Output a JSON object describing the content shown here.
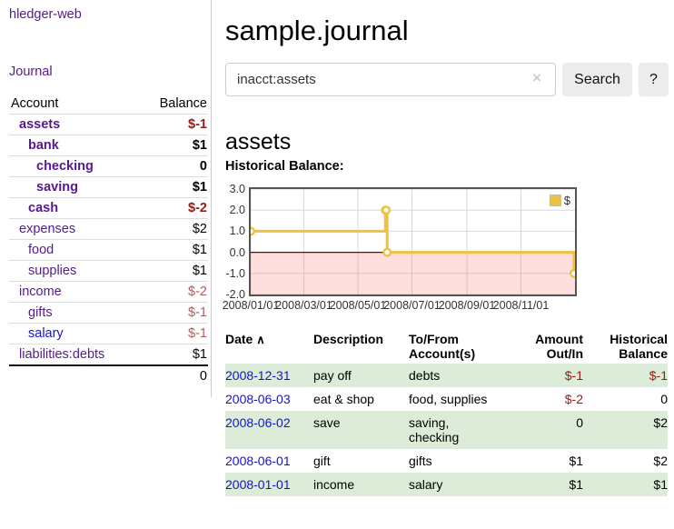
{
  "sidebar": {
    "app_title": "hledger-web",
    "journal_label": "Journal",
    "table": {
      "headers": {
        "account": "Account",
        "balance": "Balance"
      },
      "accounts": [
        {
          "name": "assets",
          "balance": "$-1"
        },
        {
          "name": "bank",
          "balance": "$1"
        },
        {
          "name": "checking",
          "balance": "0"
        },
        {
          "name": "saving",
          "balance": "$1"
        },
        {
          "name": "cash",
          "balance": "$-2"
        },
        {
          "name": "expenses",
          "balance": "$2"
        },
        {
          "name": "food",
          "balance": "$1"
        },
        {
          "name": "supplies",
          "balance": "$1"
        },
        {
          "name": "income",
          "balance": "$-2"
        },
        {
          "name": "gifts",
          "balance": "$-1"
        },
        {
          "name": "salary",
          "balance": "$-1"
        },
        {
          "name": "liabilities:debts",
          "balance": "$1"
        }
      ],
      "total": "0"
    }
  },
  "main": {
    "title": "sample.journal",
    "search": {
      "value": "inacct:assets",
      "clear_icon": "×",
      "button_label": "Search",
      "help_label": "?"
    },
    "account_heading": "assets",
    "chart_label": "Historical Balance:",
    "table": {
      "headers": {
        "date": "Date",
        "sort_icon": "∧",
        "description": "Description",
        "accounts": "To/From Account(s)",
        "amount": "Amount Out/In",
        "balance": "Historical Balance"
      },
      "rows": [
        {
          "date": "2008-12-31",
          "desc": "pay off",
          "accts": "debts",
          "amount": "$-1",
          "balance": "$-1"
        },
        {
          "date": "2008-06-03",
          "desc": "eat & shop",
          "accts": "food, supplies",
          "amount": "$-2",
          "balance": "0"
        },
        {
          "date": "2008-06-02",
          "desc": "save",
          "accts": "saving, checking",
          "amount": "0",
          "balance": "$2"
        },
        {
          "date": "2008-06-01",
          "desc": "gift",
          "accts": "gifts",
          "amount": "$1",
          "balance": "$2"
        },
        {
          "date": "2008-01-01",
          "desc": "income",
          "accts": "salary",
          "amount": "$1",
          "balance": "$1"
        }
      ]
    }
  },
  "chart_data": {
    "type": "line",
    "title": "Historical Balance",
    "step": true,
    "series": [
      {
        "name": "$",
        "points": [
          {
            "date": "2008-01-01",
            "day": 0,
            "value": 1
          },
          {
            "date": "2008-06-01",
            "day": 152,
            "value": 2
          },
          {
            "date": "2008-06-02",
            "day": 153,
            "value": 2
          },
          {
            "date": "2008-06-03",
            "day": 154,
            "value": 0
          },
          {
            "date": "2008-12-31",
            "day": 365,
            "value": -1
          }
        ]
      }
    ],
    "x_domain_days": [
      0,
      366
    ],
    "ylim": [
      -2,
      3
    ],
    "x_ticks": [
      {
        "day": 0,
        "label": "2008/01/01"
      },
      {
        "day": 60,
        "label": "2008/03/01"
      },
      {
        "day": 121,
        "label": "2008/05/01"
      },
      {
        "day": 182,
        "label": "2008/07/01"
      },
      {
        "day": 244,
        "label": "2008/09/01"
      },
      {
        "day": 305,
        "label": "2008/11/01"
      }
    ],
    "y_ticks": [
      {
        "value": 3,
        "label": "3.0"
      },
      {
        "value": 2,
        "label": "2.0"
      },
      {
        "value": 1,
        "label": "1.0"
      },
      {
        "value": 0,
        "label": "0.0"
      },
      {
        "value": -1,
        "label": "-1.0"
      },
      {
        "value": -2,
        "label": "-2.0"
      }
    ],
    "grid": true,
    "legend": {
      "label": "$",
      "position": "top-right"
    },
    "colors": {
      "line": "#edc240",
      "marker_fill": "#ffffff",
      "zero_line": "#7d0000",
      "negative_region": "#ff6b6b",
      "negative_region_opacity": 0.22,
      "gridline": "#d8d8d8"
    }
  }
}
